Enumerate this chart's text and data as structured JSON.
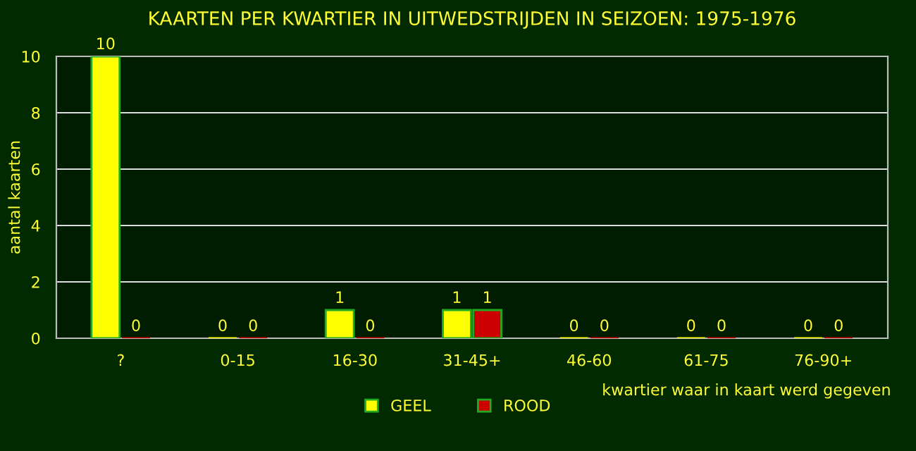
{
  "chart_data": {
    "type": "bar",
    "title": "KAARTEN PER KWARTIER IN UITWEDSTRIJDEN IN SEIZOEN: 1975-1976",
    "categories": [
      "?",
      "0-15",
      "16-30",
      "31-45+",
      "46-60",
      "61-75",
      "76-90+"
    ],
    "series": [
      {
        "name": "GEEL",
        "color": "#ffff00",
        "values": [
          10,
          0,
          1,
          1,
          0,
          0,
          0
        ]
      },
      {
        "name": "ROOD",
        "color": "#cc0000",
        "values": [
          0,
          0,
          0,
          1,
          0,
          0,
          0
        ]
      }
    ],
    "xlabel": "kwartier waar in kaart werd gegeven",
    "ylabel": "aantal kaarten",
    "ylim": [
      0,
      10
    ],
    "yticks": [
      0,
      2,
      4,
      6,
      8,
      10
    ],
    "grid": "y",
    "legend": "bottom",
    "data_labels": true
  }
}
